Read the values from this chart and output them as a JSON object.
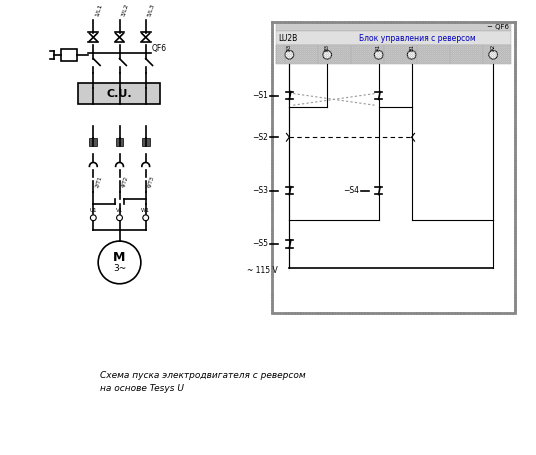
{
  "title": "Схема пуска электродвигателя с реверсом\nна основе Tesys U",
  "bg_color": "#ffffff",
  "gray_fill": "#cccccc",
  "light_gray": "#e0e0e0",
  "dark_color": "#000000",
  "blue_text": "#0000bb",
  "lw": 1.2,
  "tlw": 0.8,
  "label_1L1": "1/L1",
  "label_3L2": "3/L2",
  "label_5L3": "5/L3",
  "label_QF6": "QF6",
  "label_CU": "C.U.",
  "label_2T1": "2/T1",
  "label_4T2": "4/T2",
  "label_6T3": "6/T3",
  "label_U1": "U1",
  "label_V1": "V1",
  "label_W1": "W1",
  "label_M": "M",
  "label_3phase": "3~",
  "label_LU2B": "LU2B",
  "label_block": "Блок управления с реверсом",
  "label_QF6_right": "− QF6",
  "label_A3": "A3",
  "label_B3": "B3",
  "label_A1": "A1",
  "label_B1": "B1",
  "label_A2": "A2",
  "label_S1": "−S1",
  "label_S2": "−S2",
  "label_S3": "−S3",
  "label_S4": "−S4",
  "label_S5": "−S5",
  "label_voltage": "~ 115 V"
}
